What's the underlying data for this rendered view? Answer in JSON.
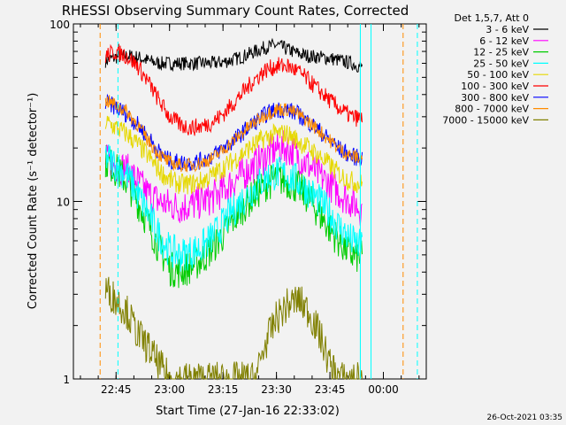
{
  "chart_data": {
    "type": "line",
    "title": "RHESSI Observing Summary Count Rates, Corrected",
    "xlabel": "Start Time (27-Jan-16 22:33:02)",
    "ylabel": "Corrected Count Rate (s⁻¹ detector⁻¹)",
    "yscale": "log",
    "ylim": [
      1,
      100
    ],
    "xlim_minutes": [
      0,
      99
    ],
    "x_unit": "minutes since 22:33:02",
    "x_ticks": [
      {
        "label": "22:45",
        "value": 11.97
      },
      {
        "label": "23:00",
        "value": 26.97
      },
      {
        "label": "23:15",
        "value": 41.97
      },
      {
        "label": "23:30",
        "value": 56.97
      },
      {
        "label": "23:45",
        "value": 71.97
      },
      {
        "label": "00:00",
        "value": 86.97
      }
    ],
    "y_ticks": [
      {
        "label": "100",
        "value": 100
      },
      {
        "label": "10",
        "value": 10
      },
      {
        "label": "1",
        "value": 1
      }
    ],
    "legend_header": "Det 1,5,7, Att 0",
    "legend_position": "right-top",
    "x": [
      9,
      12,
      15,
      18,
      21,
      24,
      27,
      30,
      33,
      36,
      39,
      42,
      45,
      48,
      51,
      54,
      57,
      60,
      63,
      66,
      69,
      72,
      75,
      78,
      81
    ],
    "series": [
      {
        "name": "3 - 6 keV",
        "color": "#000000",
        "values": [
          62,
          65,
          66,
          65,
          62,
          60,
          60,
          60,
          60,
          60,
          60,
          61,
          63,
          66,
          70,
          74,
          76,
          72,
          68,
          66,
          65,
          64,
          62,
          60,
          57
        ]
      },
      {
        "name": "6 - 12 keV",
        "color": "#ff00ff",
        "values": [
          17,
          16,
          15,
          13,
          11,
          10,
          9.5,
          9.3,
          9.5,
          10,
          10.5,
          11.5,
          13,
          14.5,
          16,
          18,
          20,
          20,
          18,
          16,
          14,
          12.5,
          11,
          10,
          9
        ]
      },
      {
        "name": "12 - 25 keV",
        "color": "#00cc00",
        "values": [
          17,
          15,
          13,
          10,
          7.5,
          5.5,
          4.2,
          4,
          4.3,
          4.7,
          5.5,
          6.5,
          8,
          9.5,
          11,
          12.5,
          13.5,
          13,
          12,
          10.5,
          8.5,
          7,
          5.8,
          5,
          4.8
        ]
      },
      {
        "name": "25 - 50 keV",
        "color": "#00ffff",
        "values": [
          18,
          16,
          14,
          11,
          8.5,
          6.5,
          5.3,
          5,
          5.2,
          5.5,
          6.3,
          7.5,
          9,
          10.5,
          12,
          13.5,
          14.5,
          14,
          13,
          11.5,
          10,
          8.5,
          7,
          6,
          5.5
        ]
      },
      {
        "name": "50 - 100 keV",
        "color": "#e6d800",
        "values": [
          28,
          26,
          24,
          21,
          18,
          15,
          13.2,
          12.5,
          12.5,
          13,
          14,
          15.5,
          17,
          19,
          21,
          23,
          24,
          24,
          22,
          20,
          18,
          16,
          14,
          13,
          12.5
        ]
      },
      {
        "name": "100 - 300 keV",
        "color": "#ff0000",
        "values": [
          66,
          70,
          66,
          58,
          47,
          37,
          30,
          27,
          26,
          26.5,
          28,
          31,
          36,
          42,
          49,
          55,
          58,
          58,
          54,
          48,
          42,
          37,
          33,
          30,
          29
        ]
      },
      {
        "name": "300 - 800 keV",
        "color": "#0000ff",
        "values": [
          36,
          34,
          31,
          27,
          23,
          19,
          17,
          16.5,
          16.5,
          17,
          18,
          20,
          22,
          25,
          28,
          31,
          33,
          33,
          31,
          28,
          25,
          22,
          19.5,
          18,
          17.5
        ]
      },
      {
        "name": "800 - 7000 keV",
        "color": "#ff8c00",
        "values": [
          37,
          35,
          32,
          27,
          22,
          18.5,
          16.5,
          16,
          16,
          16.5,
          17.5,
          19.5,
          22,
          25,
          28,
          31,
          33,
          33,
          31,
          28,
          25,
          22,
          19.5,
          18,
          17.5
        ]
      },
      {
        "name": "7000 - 15000 keV",
        "color": "#808000",
        "values": [
          3.2,
          2.8,
          2.4,
          1.8,
          1.5,
          1.2,
          1,
          1,
          1,
          1,
          1,
          1,
          1,
          1,
          1,
          1.6,
          2.2,
          2.6,
          2.8,
          2.4,
          1.8,
          1.2,
          1,
          1,
          1
        ]
      }
    ],
    "vertical_markers": [
      {
        "x": 7.5,
        "style": "dashed",
        "color": "#ff8c00"
      },
      {
        "x": 12.5,
        "style": "dashed",
        "color": "#00ffff"
      },
      {
        "x": 80.5,
        "style": "solid",
        "color": "#00ffff"
      },
      {
        "x": 83.5,
        "style": "solid",
        "color": "#00ffff"
      },
      {
        "x": 92.5,
        "style": "dashed",
        "color": "#ff8c00"
      },
      {
        "x": 96.5,
        "style": "dashed",
        "color": "#00ffff"
      }
    ],
    "footer_timestamp": "26-Oct-2021 03:35"
  }
}
